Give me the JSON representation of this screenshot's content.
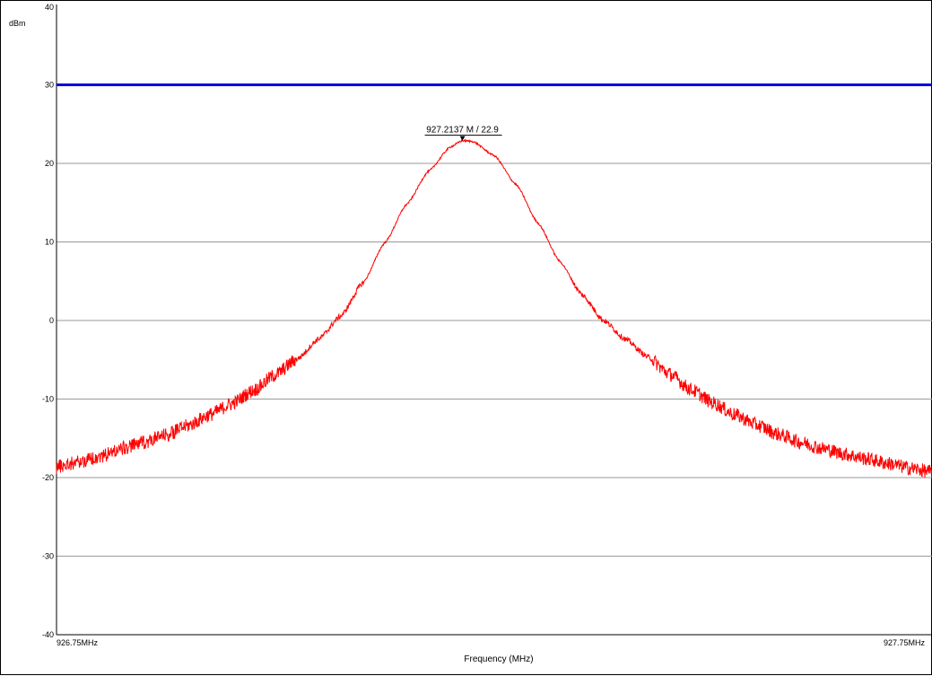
{
  "chart_data": {
    "type": "line",
    "ylabel": "dBm",
    "xlabel": "Frequency (MHz)",
    "xlim": [
      926.75,
      927.75
    ],
    "ylim": [
      -40,
      40
    ],
    "x_tick_labels": [
      "926.75MHz",
      "927.75MHz"
    ],
    "y_ticks": [
      40,
      30,
      20,
      10,
      0,
      -10,
      -20,
      -30,
      -40
    ],
    "grid": true,
    "reference_line": {
      "y": 30,
      "color": "#0000dd"
    },
    "series": [
      {
        "color": "#ff0000",
        "peak": {
          "x": 927.2137,
          "y": 22.9
        },
        "points": [
          [
            926.75,
            -18.6
          ],
          [
            926.775,
            -18.0
          ],
          [
            926.8,
            -17.3
          ],
          [
            926.825,
            -16.3
          ],
          [
            926.85,
            -15.5
          ],
          [
            926.875,
            -14.6
          ],
          [
            926.9,
            -13.4
          ],
          [
            926.925,
            -12.0
          ],
          [
            926.95,
            -10.6
          ],
          [
            926.975,
            -8.9
          ],
          [
            927.0,
            -6.9
          ],
          [
            927.025,
            -4.9
          ],
          [
            927.05,
            -2.3
          ],
          [
            927.075,
            0.6
          ],
          [
            927.1,
            4.8
          ],
          [
            927.125,
            9.9
          ],
          [
            927.15,
            14.8
          ],
          [
            927.175,
            19.0
          ],
          [
            927.2,
            22.1
          ],
          [
            927.2137,
            22.9
          ],
          [
            927.225,
            22.8
          ],
          [
            927.25,
            21.0
          ],
          [
            927.275,
            17.3
          ],
          [
            927.3,
            12.4
          ],
          [
            927.325,
            7.5
          ],
          [
            927.35,
            3.3
          ],
          [
            927.375,
            0.0
          ],
          [
            927.4,
            -2.4
          ],
          [
            927.425,
            -4.6
          ],
          [
            927.45,
            -6.8
          ],
          [
            927.475,
            -8.8
          ],
          [
            927.5,
            -10.5
          ],
          [
            927.525,
            -12.0
          ],
          [
            927.55,
            -13.3
          ],
          [
            927.575,
            -14.5
          ],
          [
            927.6,
            -15.5
          ],
          [
            927.625,
            -16.3
          ],
          [
            927.65,
            -17.0
          ],
          [
            927.675,
            -17.6
          ],
          [
            927.7,
            -18.2
          ],
          [
            927.725,
            -18.8
          ],
          [
            927.75,
            -19.3
          ]
        ]
      }
    ],
    "marker": {
      "label": "927.2137 M / 22.9",
      "x": 927.2137,
      "y": 22.9
    }
  }
}
